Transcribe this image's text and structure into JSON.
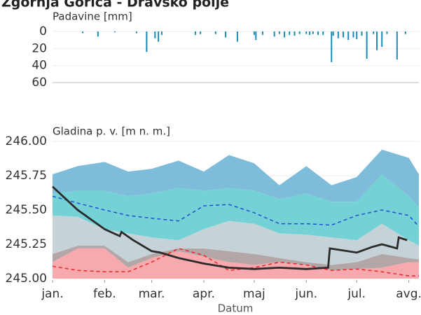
{
  "chart_data": [
    {
      "type": "bar",
      "title": "Zgornja Gorica - Dravsko polje",
      "ylabel": "Padavine [mm]",
      "color": "#1a8bb5",
      "x": [
        18,
        27,
        37,
        50,
        56,
        61,
        63,
        65,
        85,
        88,
        97,
        103,
        110,
        120,
        121,
        125,
        132,
        135,
        138,
        141,
        144,
        147,
        151,
        153,
        155,
        158,
        161,
        166,
        167,
        170,
        173,
        176,
        179,
        181,
        184,
        187,
        191,
        193,
        196,
        199,
        205,
        210
      ],
      "values": [
        2,
        6,
        1,
        2,
        24,
        8,
        12,
        4,
        4,
        3,
        3,
        7,
        12,
        4,
        10,
        4,
        6,
        3,
        7,
        4,
        5,
        3,
        3,
        4,
        3,
        4,
        4,
        36,
        5,
        8,
        7,
        10,
        7,
        9,
        5,
        32,
        3,
        22,
        18,
        3,
        33,
        3
      ],
      "xlim": [
        0,
        218
      ],
      "ylim": [
        0,
        60
      ],
      "yticks": [
        0,
        20,
        40,
        60
      ],
      "inverted": true,
      "grid": true
    },
    {
      "type": "area",
      "ylabel": "Gladina p. v. [m n. m.]",
      "xlabel": "Datum",
      "xlim": [
        0,
        218
      ],
      "ylim": [
        244.99,
        246.02
      ],
      "xticks": [
        {
          "value": 0,
          "label": "jan."
        },
        {
          "value": 31,
          "label": "feb."
        },
        {
          "value": 59,
          "label": "mar."
        },
        {
          "value": 90,
          "label": "apr."
        },
        {
          "value": 120,
          "label": "maj"
        },
        {
          "value": 151,
          "label": "jun."
        },
        {
          "value": 181,
          "label": "jul."
        },
        {
          "value": 212,
          "label": "avg."
        }
      ],
      "yticks": [
        {
          "value": 245,
          "label": "245.00"
        },
        {
          "value": 245.25,
          "label": "245.25"
        },
        {
          "value": 245.5,
          "label": "245.50"
        },
        {
          "value": 245.75,
          "label": "245.75"
        },
        {
          "value": 246,
          "label": "246.00"
        }
      ],
      "grid": true,
      "x": [
        0,
        15,
        31,
        45,
        59,
        75,
        90,
        105,
        120,
        135,
        151,
        166,
        181,
        196,
        212,
        218
      ],
      "bands": [
        {
          "color": "#f7a9ad",
          "lower": [
            245,
            245,
            245,
            245,
            245,
            245,
            245,
            245,
            245,
            245,
            245,
            245,
            245,
            245,
            245,
            245
          ],
          "upper": [
            245.12,
            245.22,
            245.22,
            245.08,
            245.15,
            245.2,
            245.16,
            245.12,
            245.1,
            245.12,
            245.1,
            245.06,
            245.07,
            245.08,
            245.12,
            245.12
          ]
        },
        {
          "color": "#b3a6a6",
          "lower": [
            245.12,
            245.22,
            245.22,
            245.08,
            245.15,
            245.2,
            245.16,
            245.12,
            245.1,
            245.12,
            245.1,
            245.06,
            245.07,
            245.08,
            245.12,
            245.12
          ],
          "upper": [
            245.18,
            245.24,
            245.24,
            245.12,
            245.18,
            245.22,
            245.22,
            245.2,
            245.18,
            245.15,
            245.12,
            245.1,
            245.12,
            245.18,
            245.15,
            245.14
          ]
        },
        {
          "color": "#c5d3d8",
          "lower": [
            245.18,
            245.24,
            245.24,
            245.12,
            245.18,
            245.22,
            245.22,
            245.2,
            245.18,
            245.15,
            245.12,
            245.1,
            245.12,
            245.18,
            245.15,
            245.14
          ],
          "upper": [
            245.46,
            245.45,
            245.36,
            245.33,
            245.3,
            245.28,
            245.36,
            245.42,
            245.4,
            245.33,
            245.32,
            245.3,
            245.28,
            245.4,
            245.28,
            245.24
          ]
        },
        {
          "color": "#74d2d6",
          "lower": [
            245.46,
            245.45,
            245.36,
            245.33,
            245.3,
            245.28,
            245.36,
            245.42,
            245.4,
            245.33,
            245.32,
            245.3,
            245.28,
            245.4,
            245.28,
            245.24
          ],
          "upper": [
            245.62,
            245.64,
            245.64,
            245.6,
            245.62,
            245.66,
            245.64,
            245.66,
            245.64,
            245.58,
            245.62,
            245.56,
            245.56,
            245.76,
            245.6,
            245.52
          ]
        },
        {
          "color": "#7fbcd9",
          "lower": [
            245.62,
            245.64,
            245.64,
            245.6,
            245.62,
            245.66,
            245.64,
            245.66,
            245.64,
            245.58,
            245.62,
            245.56,
            245.56,
            245.76,
            245.6,
            245.52
          ],
          "upper": [
            245.76,
            245.82,
            245.85,
            245.78,
            245.8,
            245.86,
            245.78,
            245.9,
            245.84,
            245.68,
            245.82,
            245.68,
            245.74,
            245.94,
            245.88,
            245.76
          ]
        }
      ],
      "series": [
        {
          "color": "#1f4fd0",
          "dash": true,
          "x": [
            0,
            15,
            31,
            45,
            59,
            75,
            90,
            105,
            120,
            135,
            151,
            166,
            181,
            196,
            212,
            218
          ],
          "values": [
            245.6,
            245.55,
            245.5,
            245.46,
            245.44,
            245.42,
            245.53,
            245.54,
            245.48,
            245.4,
            245.4,
            245.39,
            245.46,
            245.5,
            245.46,
            245.38
          ]
        },
        {
          "color": "#e8262c",
          "dash": true,
          "x": [
            0,
            15,
            31,
            45,
            59,
            75,
            90,
            105,
            120,
            135,
            151,
            166,
            181,
            196,
            212,
            218
          ],
          "values": [
            245.09,
            245.06,
            245.05,
            245.05,
            245.12,
            245.22,
            245.17,
            245.06,
            245.08,
            245.12,
            245.1,
            245.06,
            245.07,
            245.05,
            245.02,
            245.02
          ]
        },
        {
          "color": "#2b2b2b",
          "dash": false,
          "x": [
            0,
            15,
            31,
            40,
            41,
            48,
            59,
            64,
            75,
            90,
            105,
            120,
            135,
            151,
            164,
            165,
            181,
            190,
            196,
            205,
            206,
            211
          ],
          "values": [
            245.67,
            245.5,
            245.36,
            245.31,
            245.34,
            245.28,
            245.2,
            245.19,
            245.15,
            245.11,
            245.08,
            245.07,
            245.08,
            245.07,
            245.08,
            245.22,
            245.19,
            245.23,
            245.25,
            245.22,
            245.3,
            245.28
          ]
        }
      ]
    }
  ]
}
